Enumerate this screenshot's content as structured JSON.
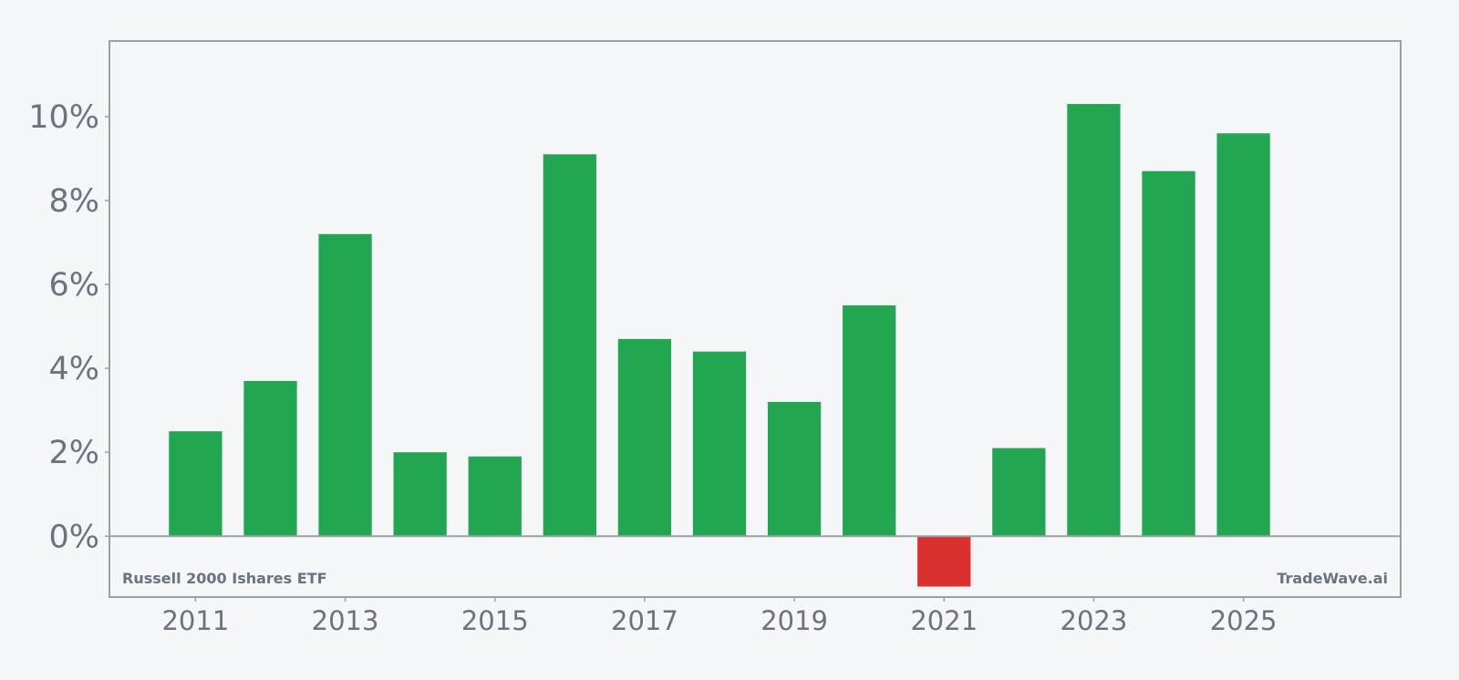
{
  "chart_data": {
    "type": "bar",
    "title": "",
    "xlabel": "",
    "ylabel": "",
    "x": [
      2011,
      2012,
      2013,
      2014,
      2015,
      2016,
      2017,
      2018,
      2019,
      2020,
      2021,
      2022,
      2023,
      2024,
      2025
    ],
    "values": [
      2.5,
      3.7,
      7.2,
      2.0,
      1.9,
      9.1,
      4.7,
      4.4,
      3.2,
      5.5,
      -1.2,
      2.1,
      10.3,
      8.7,
      9.6
    ],
    "xlim": [
      2009.85,
      2027.1
    ],
    "ylim": [
      -1.45,
      11.8
    ],
    "yticks": [
      0,
      2,
      4,
      6,
      8,
      10
    ],
    "ytick_labels": [
      "0%",
      "2%",
      "4%",
      "6%",
      "8%",
      "10%"
    ],
    "xticks": [
      2011,
      2013,
      2015,
      2017,
      2019,
      2021,
      2023,
      2025
    ],
    "xtick_labels": [
      "2011",
      "2013",
      "2015",
      "2017",
      "2019",
      "2021",
      "2023",
      "2025"
    ],
    "grid": false,
    "legend": false,
    "colors": {
      "positive": "#22a652",
      "negative": "#dc3030",
      "axis": "#9aa0aa",
      "text": "#6b7280",
      "background": "#f4f6f8"
    }
  },
  "annotations": {
    "source_label": "Russell 2000 Ishares ETF",
    "brand_label": "TradeWave.ai"
  }
}
